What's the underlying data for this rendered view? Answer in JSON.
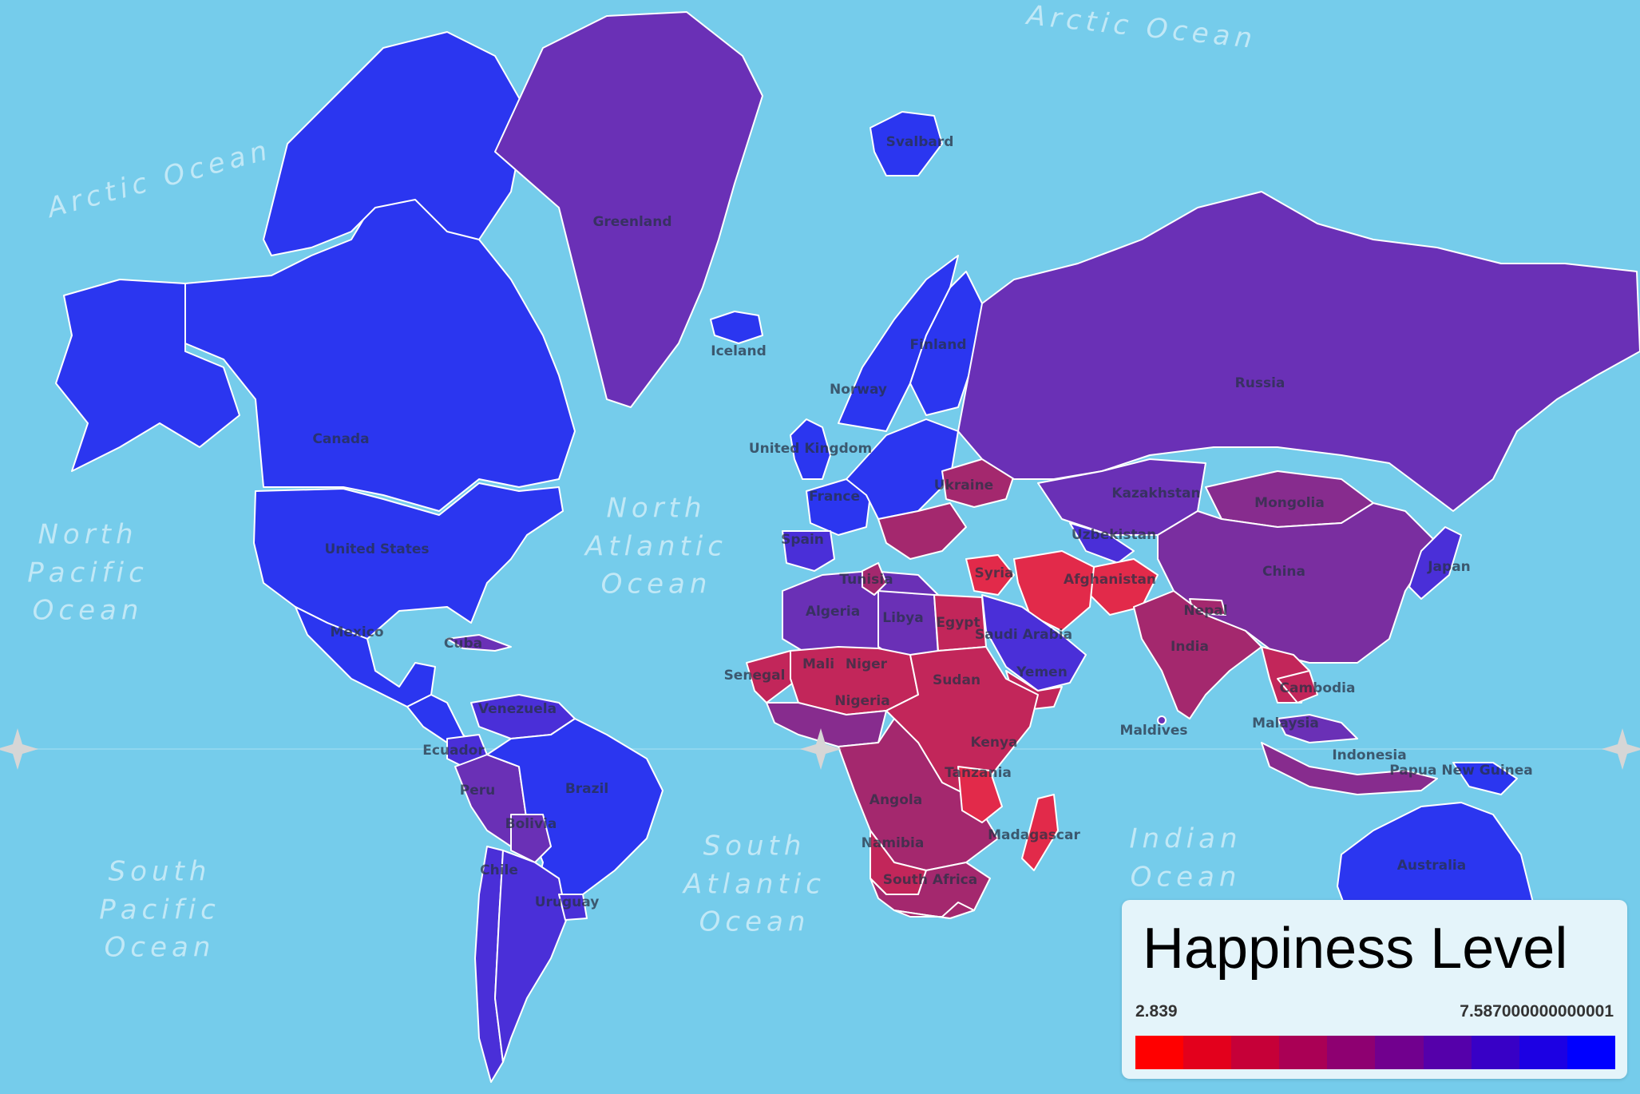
{
  "legend": {
    "title": "Happiness Level",
    "min_label": "2.839",
    "max_label": "7.587000000000001",
    "colors": [
      "#FF0000",
      "#E3001C",
      "#C60038",
      "#AA0055",
      "#8E0071",
      "#71008E",
      "#5500AA",
      "#3800C6",
      "#1C00E3",
      "#0000FF"
    ]
  },
  "colors": {
    "ocean": "#75CCEB",
    "very_high": "#2B36F0",
    "high": "#4A2FD8",
    "upper_mid": "#6A30B6",
    "mid": "#872C8E",
    "lower_mid": "#A4286E",
    "low": "#C2265A",
    "very_low": "#E22A4A"
  },
  "oceans": [
    {
      "id": "arctic-ne",
      "text": "Arctic Ocean"
    },
    {
      "id": "arctic-nw",
      "text": "Arctic Ocean"
    },
    {
      "id": "north-pacific",
      "text": "North\nPacific\nOcean"
    },
    {
      "id": "north-atlantic",
      "text": "North\nAtlantic\nOcean"
    },
    {
      "id": "south-pacific",
      "text": "South\nPacific\nOcean"
    },
    {
      "id": "south-atlantic",
      "text": "South\nAtlantic\nOcean"
    },
    {
      "id": "indian",
      "text": "Indian\nOcean"
    }
  ],
  "countries": [
    {
      "id": "canada",
      "label": "Canada",
      "color": "#2B36F0"
    },
    {
      "id": "united-states",
      "label": "United States",
      "color": "#2B36F0"
    },
    {
      "id": "mexico",
      "label": "Mexico",
      "color": "#2B36F0"
    },
    {
      "id": "cuba",
      "label": "Cuba",
      "color": "#6A30B6"
    },
    {
      "id": "greenland",
      "label": "Greenland",
      "color": "#6A30B6"
    },
    {
      "id": "iceland",
      "label": "Iceland",
      "color": "#2B36F0"
    },
    {
      "id": "svalbard",
      "label": "Svalbard",
      "color": "#2B36F0"
    },
    {
      "id": "norway",
      "label": "Norway",
      "color": "#2B36F0"
    },
    {
      "id": "finland",
      "label": "Finland",
      "color": "#2B36F0"
    },
    {
      "id": "united-kingdom",
      "label": "United Kingdom",
      "color": "#2B36F0"
    },
    {
      "id": "france",
      "label": "France",
      "color": "#2B36F0"
    },
    {
      "id": "spain",
      "label": "Spain",
      "color": "#4A2FD8"
    },
    {
      "id": "ukraine",
      "label": "Ukraine",
      "color": "#A4286E"
    },
    {
      "id": "russia",
      "label": "Russia",
      "color": "#6A30B6"
    },
    {
      "id": "kazakhstan",
      "label": "Kazakhstan",
      "color": "#6A30B6"
    },
    {
      "id": "uzbekistan",
      "label": "Uzbekistan",
      "color": "#4A2FD8"
    },
    {
      "id": "mongolia",
      "label": "Mongolia",
      "color": "#872C8E"
    },
    {
      "id": "china",
      "label": "China",
      "color": "#7A2EA0"
    },
    {
      "id": "japan",
      "label": "Japan",
      "color": "#4A2FD8"
    },
    {
      "id": "afghanistan",
      "label": "Afghanistan",
      "color": "#E22A4A"
    },
    {
      "id": "nepal",
      "label": "Nepal",
      "color": "#A4286E"
    },
    {
      "id": "india",
      "label": "India",
      "color": "#A4286E"
    },
    {
      "id": "syria",
      "label": "Syria",
      "color": "#E22A4A"
    },
    {
      "id": "saudi-arabia",
      "label": "Saudi Arabia",
      "color": "#4A2FD8"
    },
    {
      "id": "yemen",
      "label": "Yemen",
      "color": "#C2265A"
    },
    {
      "id": "cambodia",
      "label": "Cambodia",
      "color": "#C2265A"
    },
    {
      "id": "malaysia",
      "label": "Malaysia",
      "color": "#6A30B6"
    },
    {
      "id": "indonesia",
      "label": "Indonesia",
      "color": "#872C8E"
    },
    {
      "id": "papua-new-guinea",
      "label": "Papua New Guinea",
      "color": "#2B36F0"
    },
    {
      "id": "maldives",
      "label": "Maldives",
      "color": "#6A30B6"
    },
    {
      "id": "australia",
      "label": "Australia",
      "color": "#2B36F0"
    },
    {
      "id": "tunisia",
      "label": "Tunisia",
      "color": "#A4286E"
    },
    {
      "id": "algeria",
      "label": "Algeria",
      "color": "#6A30B6"
    },
    {
      "id": "libya",
      "label": "Libya",
      "color": "#6A30B6"
    },
    {
      "id": "egypt",
      "label": "Egypt",
      "color": "#C2265A"
    },
    {
      "id": "senegal",
      "label": "Senegal",
      "color": "#C2265A"
    },
    {
      "id": "mali",
      "label": "Mali",
      "color": "#C2265A"
    },
    {
      "id": "niger",
      "label": "Niger",
      "color": "#C2265A"
    },
    {
      "id": "nigeria",
      "label": "Nigeria",
      "color": "#872C8E"
    },
    {
      "id": "sudan",
      "label": "Sudan",
      "color": "#C2265A"
    },
    {
      "id": "kenya",
      "label": "Kenya",
      "color": "#A4286E"
    },
    {
      "id": "tanzania",
      "label": "Tanzania",
      "color": "#E22A4A"
    },
    {
      "id": "angola",
      "label": "Angola",
      "color": "#C2265A"
    },
    {
      "id": "namibia",
      "label": "Namibia",
      "color": "#A4286E"
    },
    {
      "id": "south-africa",
      "label": "South Africa",
      "color": "#A4286E"
    },
    {
      "id": "madagascar",
      "label": "Madagascar",
      "color": "#E22A4A"
    },
    {
      "id": "venezuela",
      "label": "Venezuela",
      "color": "#4A2FD8"
    },
    {
      "id": "ecuador",
      "label": "Ecuador",
      "color": "#4A2FD8"
    },
    {
      "id": "peru",
      "label": "Peru",
      "color": "#6A30B6"
    },
    {
      "id": "brazil",
      "label": "Brazil",
      "color": "#2B36F0"
    },
    {
      "id": "bolivia",
      "label": "Bolivia",
      "color": "#6A30B6"
    },
    {
      "id": "chile",
      "label": "Chile",
      "color": "#4A2FD8"
    },
    {
      "id": "uruguay",
      "label": "Uruguay",
      "color": "#4A2FD8"
    },
    {
      "id": "argentina",
      "label": "",
      "color": "#4A2FD8"
    }
  ]
}
